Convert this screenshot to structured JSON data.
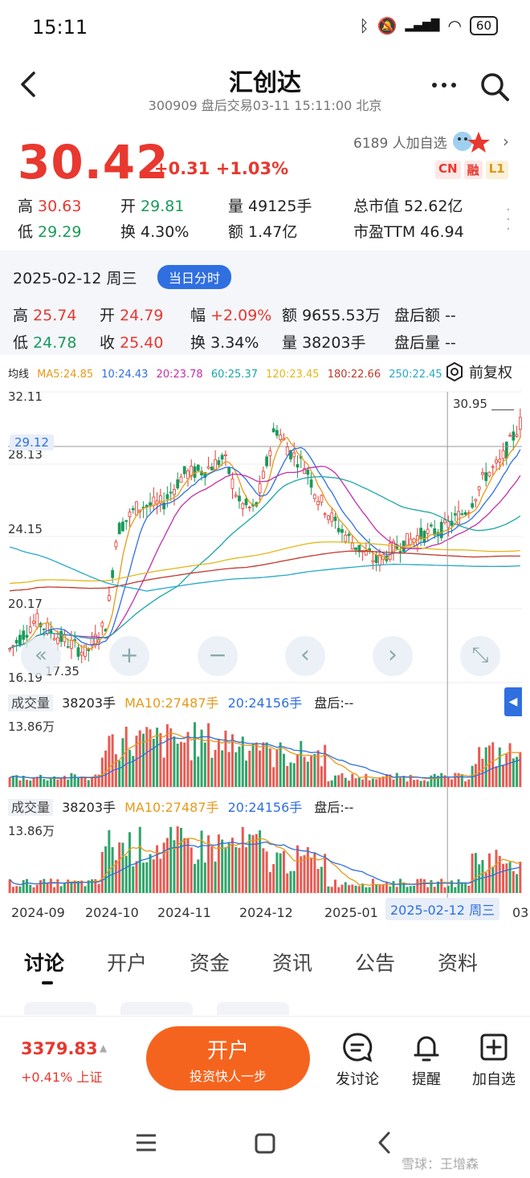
{
  "status_bar": {
    "time": "15:11",
    "battery": "60",
    "net": "HD"
  },
  "header": {
    "title": "汇创达",
    "subtitle": "300909 盘后交易03-11 15:11:00 北京"
  },
  "quote": {
    "price": "30.42",
    "change": "+0.31 +1.03%",
    "followers": "6189 人加自选",
    "tags": [
      "CN",
      "融",
      "L1"
    ],
    "stats": [
      {
        "label": "高",
        "value": "30.63",
        "color": "red"
      },
      {
        "label": "开",
        "value": "29.81",
        "color": "green"
      },
      {
        "label": "量",
        "value": "49125手",
        "color": "plain"
      },
      {
        "label": "总市值",
        "value": "52.62亿",
        "color": "plain"
      },
      {
        "label": "低",
        "value": "29.29",
        "color": "green"
      },
      {
        "label": "换",
        "value": "4.30%",
        "color": "plain"
      },
      {
        "label": "额",
        "value": "1.47亿",
        "color": "plain"
      },
      {
        "label": "市盈TTM",
        "value": "46.94",
        "color": "plain"
      }
    ]
  },
  "history": {
    "date": "2025-02-12 周三",
    "button": "当日分时",
    "stats": [
      {
        "label": "高",
        "value": "25.74",
        "color": "red"
      },
      {
        "label": "开",
        "value": "24.79",
        "color": "red"
      },
      {
        "label": "幅",
        "value": "+2.09%",
        "color": "red"
      },
      {
        "label": "额",
        "value": "9655.53万",
        "color": "plain"
      },
      {
        "label": "盘后额",
        "value": "--",
        "color": "plain"
      },
      {
        "label": "低",
        "value": "24.78",
        "color": "green"
      },
      {
        "label": "收",
        "value": "25.40",
        "color": "red"
      },
      {
        "label": "换",
        "value": "3.34%",
        "color": "plain"
      },
      {
        "label": "量",
        "value": "38203手",
        "color": "plain"
      },
      {
        "label": "盘后量",
        "value": "--",
        "color": "plain"
      }
    ]
  },
  "chart": {
    "ma_title": "均线",
    "ma": [
      {
        "text": "MA5:24.85",
        "color": "#e79a1a"
      },
      {
        "text": "10:24.43",
        "color": "#2f6fe0"
      },
      {
        "text": "20:23.78",
        "color": "#c22fa8"
      },
      {
        "text": "60:25.37",
        "color": "#1aa6a6"
      },
      {
        "text": "120:23.45",
        "color": "#e3b71a"
      },
      {
        "text": "180:22.66",
        "color": "#c0392b"
      },
      {
        "text": "250:22.45",
        "color": "#27a8c8"
      }
    ],
    "fuquan": "前复权",
    "y_labels": [
      "32.11",
      "28.13",
      "24.15",
      "20.17",
      "16.19"
    ],
    "crosshair_price": "29.12",
    "high_label": "30.95",
    "low_label": "17.35",
    "x_labels": [
      "2024-09",
      "2024-10",
      "2024-11",
      "2024-12",
      "2025-01",
      "03"
    ],
    "crosshair_date": "2025-02-12 周三",
    "volume_panels": [
      {
        "title": "成交量",
        "vol": "38203手",
        "ma10": "MA10:27487手",
        "ma20": "20:24156手",
        "after": "盘后:--",
        "max": "13.86万"
      },
      {
        "title": "成交量",
        "vol": "38203手",
        "ma10": "MA10:27487手",
        "ma20": "20:24156手",
        "after": "盘后:--",
        "max": "13.86万"
      }
    ],
    "nav_buttons": [
      "«",
      "+",
      "−",
      "‹",
      "›",
      "⤡"
    ]
  },
  "tabs": [
    "讨论",
    "开户",
    "资金",
    "资讯",
    "公告",
    "资料"
  ],
  "bottom": {
    "index_price": "3379.83",
    "index_change": "+0.41% 上证",
    "open_main": "开户",
    "open_sub": "投资快人一步",
    "actions": [
      "发讨论",
      "提醒",
      "加自选"
    ]
  },
  "watermark": "雪球：王增森"
}
